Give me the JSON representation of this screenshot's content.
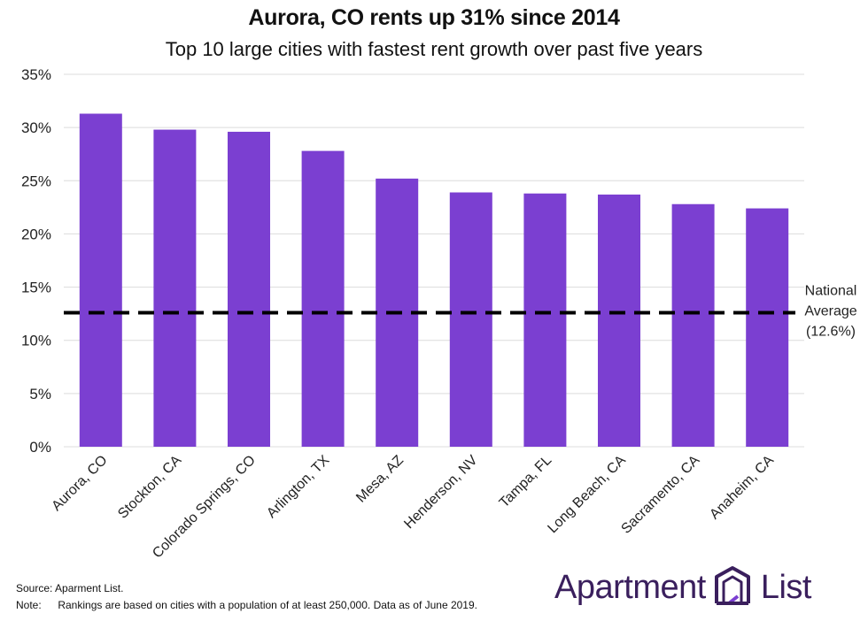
{
  "header": {
    "title": "Aurora, CO rents up 31% since 2014",
    "subtitle": "Top 10 large cities with fastest rent growth over past five years"
  },
  "chart_data": {
    "type": "bar",
    "title": "Aurora, CO rents up 31% since 2014",
    "subtitle": "Top 10 large cities with fastest rent growth over past five years",
    "categories": [
      "Aurora, CO",
      "Stockton, CA",
      "Colorado Springs, CO",
      "Arlington, TX",
      "Mesa, AZ",
      "Henderson, NV",
      "Tampa, FL",
      "Long Beach, CA",
      "Sacramento, CA",
      "Anaheim, CA"
    ],
    "values": [
      31.3,
      29.8,
      29.6,
      27.8,
      25.2,
      23.9,
      23.8,
      23.7,
      22.8,
      22.4
    ],
    "ylim": [
      0,
      35
    ],
    "yticks": [
      0,
      5,
      10,
      15,
      20,
      25,
      30,
      35
    ],
    "ytick_labels": [
      "0%",
      "5%",
      "10%",
      "15%",
      "20%",
      "25%",
      "30%",
      "35%"
    ],
    "grid": true,
    "bar_color": "#7b3fd1",
    "reference_line": {
      "value": 12.6,
      "label_lines": [
        "National",
        "Average",
        "(12.6%)"
      ],
      "style": "dashed",
      "color": "#000000"
    }
  },
  "footer": {
    "source_label": "Source:",
    "source_text": "Aparment List.",
    "note_label": "Note:",
    "note_text": "Rankings are based on cities with a population of at least 250,000. Data as of June 2019."
  },
  "logo": {
    "word1": "Apartment",
    "word2": "List",
    "color": "#3a1f5d",
    "icon": "apartment-list-building-icon"
  }
}
